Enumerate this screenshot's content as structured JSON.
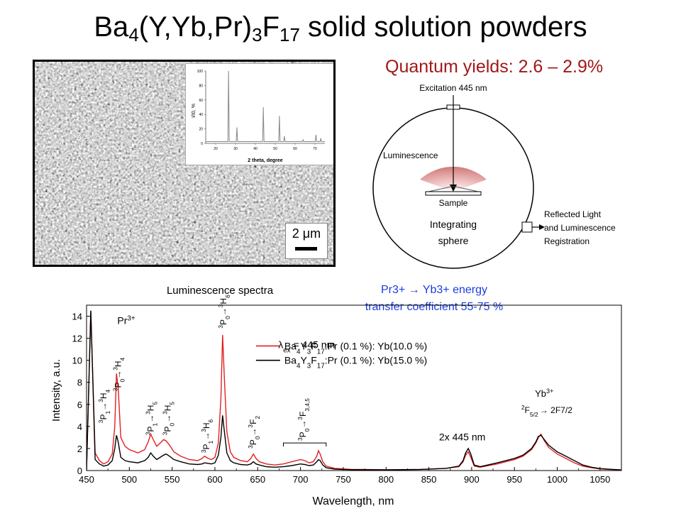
{
  "slide": {
    "title_prefix": "Ba",
    "title_sub1": "4",
    "title_mid": "(Y,Yb,Pr)",
    "title_sub2": "3",
    "title_f": "F",
    "title_sub3": "17",
    "title_suffix": " solid solution powders"
  },
  "sem": {
    "scale_label": "2 μm",
    "xrd_inset": {
      "ylabel": "I/I0, %",
      "xlabel": "2 theta, degree",
      "y_ticks": [
        "0",
        "20",
        "40",
        "60",
        "80",
        "100"
      ],
      "x_ticks": [
        "20",
        "30",
        "40",
        "50",
        "60",
        "70"
      ],
      "peaks": [
        {
          "two_theta": 26.5,
          "intensity": 100
        },
        {
          "two_theta": 30.7,
          "intensity": 22
        },
        {
          "two_theta": 44.0,
          "intensity": 50
        },
        {
          "two_theta": 52.1,
          "intensity": 38
        },
        {
          "two_theta": 54.6,
          "intensity": 10
        },
        {
          "two_theta": 64.0,
          "intensity": 5
        },
        {
          "two_theta": 70.5,
          "intensity": 12
        },
        {
          "two_theta": 72.9,
          "intensity": 7
        }
      ]
    }
  },
  "quantum": {
    "title": "Quantum yields: 2.6 – 2.9%",
    "excitation": "Excitation 445 nm",
    "luminescence": "Luminescence",
    "sample": "Sample",
    "sphere_line1": "Integrating",
    "sphere_line2": "sphere",
    "reflected1": "Reflected Light",
    "reflected2": "and Luminescence",
    "reflected3": "Registration"
  },
  "chart_data": {
    "type": "line",
    "title": "Luminescence spectra",
    "xlabel": "Wavelength, nm",
    "ylabel": "Intensity, a.u.",
    "xlim": [
      450,
      1075
    ],
    "ylim": [
      0,
      15
    ],
    "x_ticks": [
      450,
      500,
      550,
      600,
      650,
      700,
      750,
      800,
      850,
      900,
      950,
      1000,
      1050
    ],
    "y_ticks": [
      0,
      2,
      4,
      6,
      8,
      10,
      12,
      14
    ],
    "excitation_label": "λex = 445 nm",
    "energy_transfer": [
      "Pr3+ → Yb3+ energy",
      "transfer coefficient 55-75 %"
    ],
    "pr_label": "Pr3+",
    "yb_label": "Yb3+",
    "yb_transition": "2F5/2 → 2F7/2",
    "second_order_label": "2x 445 nm",
    "transitions": [
      {
        "label": "3P1→3H4",
        "x": 470
      },
      {
        "label": "3P0→3H4",
        "x": 487
      },
      {
        "label": "3P1→3H5",
        "x": 525
      },
      {
        "label": "3P0→3H5",
        "x": 545
      },
      {
        "label": "3P1→3H6",
        "x": 590
      },
      {
        "label": "3P0→3H6",
        "x": 610
      },
      {
        "label": "3P0→3F2",
        "x": 645
      },
      {
        "label": "3P0→3F3,4,5",
        "x": 703
      }
    ],
    "series": [
      {
        "name": "Ba4Y3F17:Pr (0.1 %): Yb(10.0 %)",
        "color": "#e02020",
        "x": [
          450,
          455,
          460,
          465,
          470,
          475,
          480,
          483,
          485,
          487,
          490,
          495,
          500,
          510,
          518,
          522,
          525,
          528,
          532,
          536,
          540,
          543,
          547,
          552,
          560,
          570,
          580,
          585,
          588,
          592,
          596,
          600,
          604,
          607,
          609,
          611,
          614,
          618,
          622,
          630,
          638,
          642,
          645,
          648,
          652,
          660,
          670,
          680,
          690,
          700,
          705,
          710,
          715,
          719,
          721,
          723,
          726,
          730,
          740,
          760,
          800,
          840,
          870,
          885,
          890,
          893,
          896,
          899,
          903,
          910,
          930,
          950,
          960,
          970,
          975,
          978,
          981,
          985,
          990,
          1000,
          1010,
          1020,
          1030,
          1040,
          1050,
          1060,
          1075
        ],
        "y": [
          0,
          14.5,
          1.6,
          0.9,
          0.6,
          0.8,
          1.5,
          4.0,
          8.8,
          7.5,
          3.0,
          2.2,
          1.9,
          1.6,
          1.9,
          2.6,
          3.3,
          2.8,
          2.2,
          2.5,
          2.8,
          2.7,
          2.3,
          1.7,
          1.3,
          1.0,
          0.9,
          1.1,
          1.3,
          1.1,
          1.0,
          1.2,
          2.5,
          6.5,
          12.3,
          8.5,
          3.5,
          1.7,
          1.2,
          0.9,
          0.8,
          1.1,
          1.5,
          1.1,
          0.8,
          0.6,
          0.5,
          0.6,
          0.8,
          1.0,
          0.9,
          0.7,
          0.8,
          1.3,
          1.8,
          1.5,
          0.8,
          0.4,
          0.2,
          0.1,
          0.08,
          0.1,
          0.2,
          0.35,
          0.8,
          1.4,
          1.7,
          1.2,
          0.4,
          0.3,
          0.6,
          1.0,
          1.3,
          1.9,
          2.5,
          3.0,
          3.3,
          2.7,
          2.1,
          1.5,
          1.1,
          0.7,
          0.4,
          0.25,
          0.15,
          0.1,
          0.05
        ]
      },
      {
        "name": "Ba4Y3F17:Pr (0.1 %): Yb(15.0 %)",
        "color": "#000000",
        "x": [
          450,
          455,
          460,
          465,
          470,
          475,
          480,
          483,
          485,
          487,
          490,
          495,
          500,
          510,
          518,
          522,
          525,
          528,
          532,
          536,
          540,
          543,
          547,
          552,
          560,
          570,
          580,
          585,
          588,
          592,
          596,
          600,
          604,
          607,
          609,
          611,
          614,
          618,
          622,
          630,
          638,
          642,
          645,
          648,
          652,
          660,
          670,
          680,
          690,
          700,
          705,
          710,
          715,
          719,
          721,
          723,
          726,
          730,
          740,
          760,
          800,
          840,
          870,
          885,
          890,
          893,
          896,
          899,
          903,
          910,
          930,
          950,
          960,
          970,
          975,
          978,
          981,
          985,
          990,
          1000,
          1010,
          1020,
          1030,
          1040,
          1050,
          1060,
          1075
        ],
        "y": [
          0,
          14.5,
          1.0,
          0.6,
          0.4,
          0.5,
          0.9,
          2.0,
          3.2,
          2.6,
          1.2,
          0.9,
          0.8,
          0.7,
          0.9,
          1.2,
          1.6,
          1.3,
          1.0,
          1.2,
          1.4,
          1.5,
          1.3,
          1.0,
          0.8,
          0.6,
          0.55,
          0.6,
          0.7,
          0.65,
          0.6,
          0.7,
          1.4,
          3.0,
          5.0,
          3.6,
          1.6,
          0.9,
          0.7,
          0.55,
          0.5,
          0.6,
          0.8,
          0.6,
          0.5,
          0.35,
          0.3,
          0.35,
          0.45,
          0.6,
          0.55,
          0.45,
          0.5,
          0.8,
          1.0,
          0.9,
          0.5,
          0.25,
          0.12,
          0.08,
          0.06,
          0.1,
          0.2,
          0.4,
          0.9,
          1.6,
          2.0,
          1.5,
          0.5,
          0.35,
          0.7,
          1.1,
          1.4,
          2.0,
          2.6,
          3.1,
          3.2,
          2.8,
          2.3,
          1.7,
          1.3,
          0.9,
          0.5,
          0.3,
          0.18,
          0.12,
          0.06
        ]
      }
    ]
  }
}
